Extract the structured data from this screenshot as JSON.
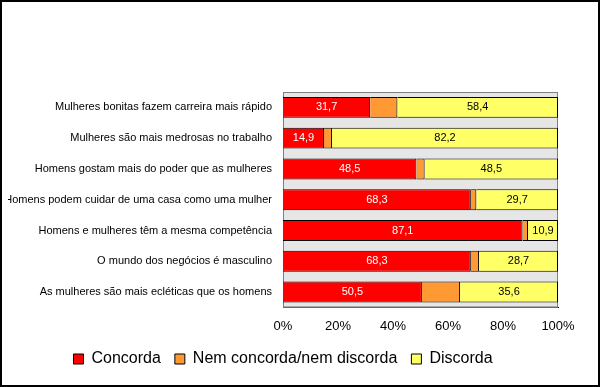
{
  "chart_data": {
    "type": "bar",
    "orientation": "horizontal",
    "stacked": true,
    "grid": false,
    "legend": "bottom",
    "categories": [
      "Mulheres bonitas fazem carreira mais rápido",
      "Mulheres são mais medrosas no trabalho",
      "Homens gostam mais do poder que as mulheres",
      "Homens podem cuidar de uma casa como uma mulher",
      "Homens e mulheres têm a mesma competência",
      "O mundo dos negócios é masculino",
      "As mulheres são mais ecléticas que os homens"
    ],
    "series": [
      {
        "name": "Concorda",
        "color": "#ff0000",
        "values": [
          31.7,
          14.9,
          48.5,
          68.3,
          87.1,
          68.3,
          50.5
        ],
        "data_labels": true,
        "value_labels": [
          "31,7",
          "14,9",
          "48,5",
          "68,3",
          "87,1",
          "68,3",
          "50,5"
        ]
      },
      {
        "name": "Nem concorda/nem discorda",
        "color": "#ff9933",
        "values": [
          9.9,
          2.9,
          3.0,
          2.0,
          2.0,
          3.0,
          13.9
        ]
      },
      {
        "name": "Discorda",
        "color": "#ffff66",
        "values": [
          58.4,
          82.2,
          48.5,
          29.7,
          10.9,
          28.7,
          35.6
        ],
        "data_labels": true,
        "value_labels": [
          "58,4",
          "82,2",
          "48,5",
          "29,7",
          "10,9",
          "28,7",
          "35,6"
        ]
      }
    ],
    "xlim": [
      0,
      100
    ],
    "xticks": [
      {
        "value": 0,
        "label": "0%"
      },
      {
        "value": 20,
        "label": "20%"
      },
      {
        "value": 40,
        "label": "40%"
      },
      {
        "value": 60,
        "label": "60%"
      },
      {
        "value": 80,
        "label": "80%"
      },
      {
        "value": 100,
        "label": "100%"
      }
    ]
  }
}
